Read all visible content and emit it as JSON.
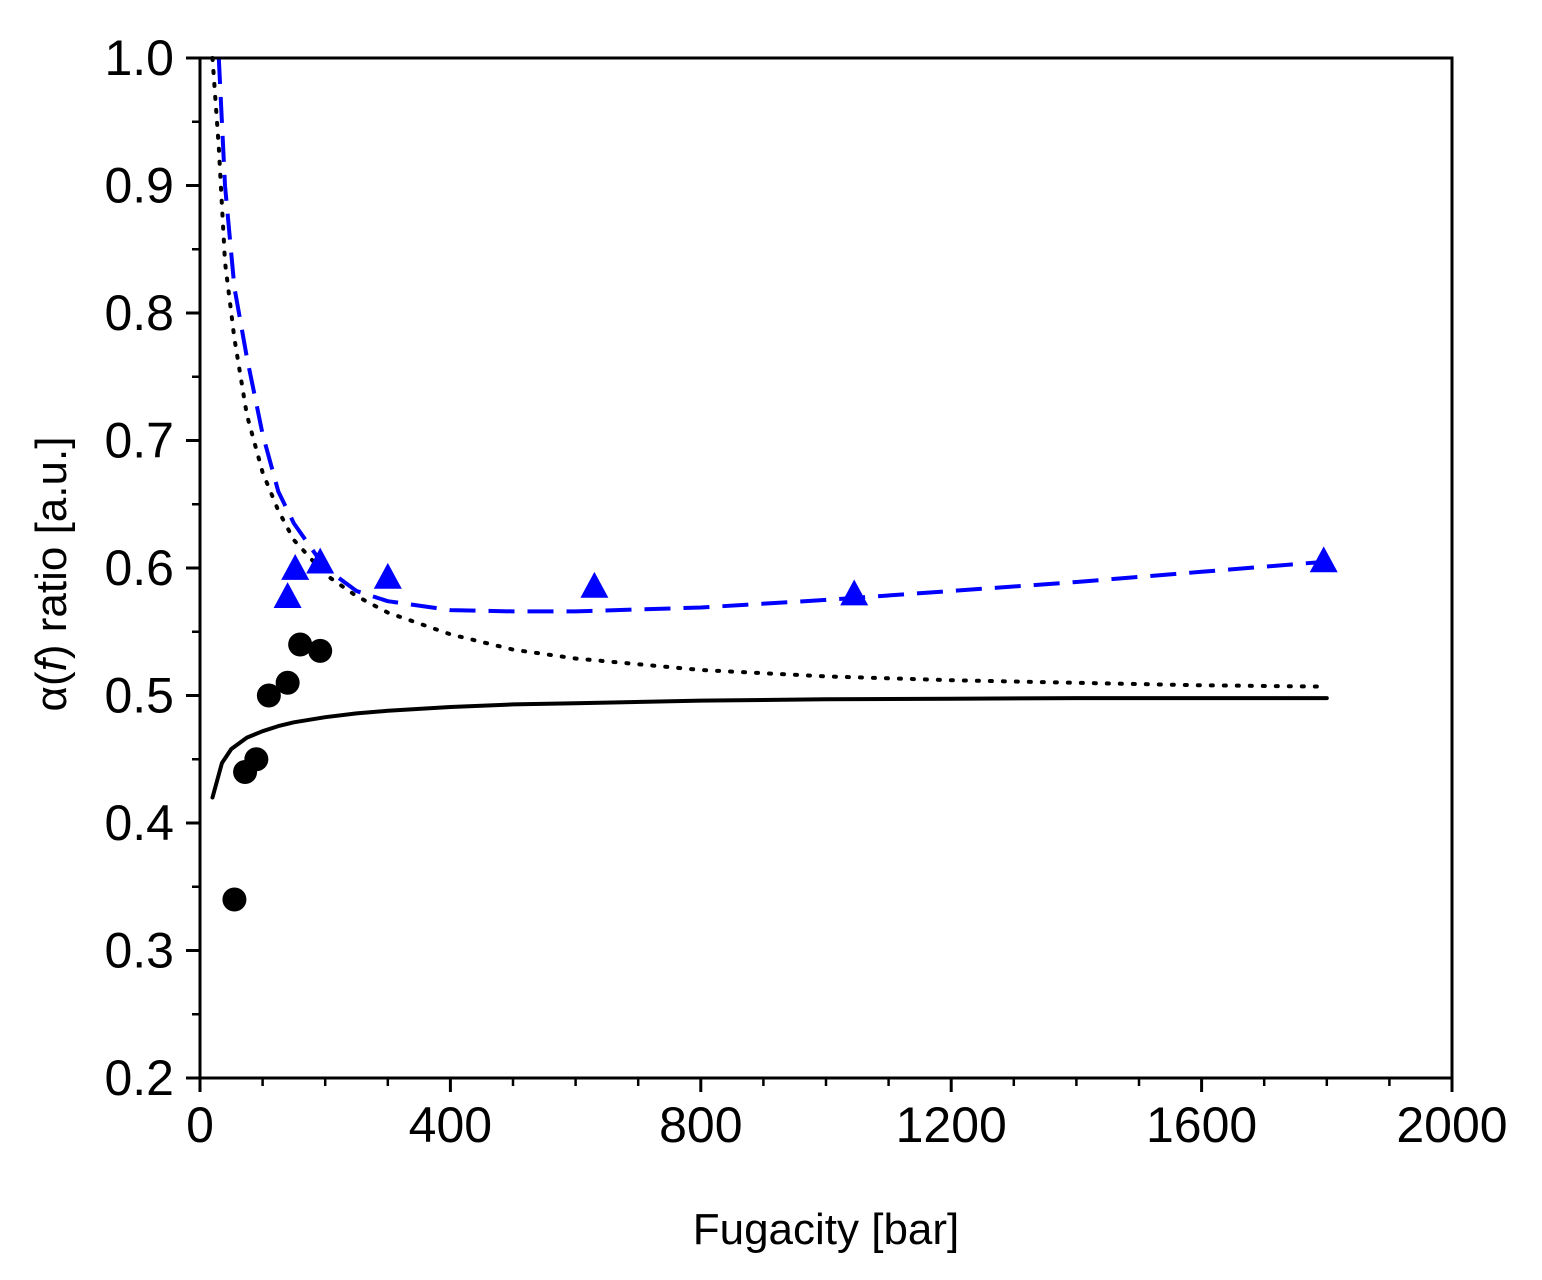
{
  "chart_data": {
    "type": "scatter",
    "title": "",
    "xlabel": "Fugacity [bar]",
    "ylabel_parts": [
      "α(",
      "f",
      ") ratio [a.u.]"
    ],
    "xlim": [
      0,
      2000
    ],
    "ylim": [
      0.2,
      1.0
    ],
    "x_ticks": [
      0,
      400,
      800,
      1200,
      1600,
      2000
    ],
    "x_tick_labels": [
      "0",
      "400",
      "800",
      "1200",
      "1600",
      "2000"
    ],
    "x_minor_step": 100,
    "y_ticks": [
      0.2,
      0.3,
      0.4,
      0.5,
      0.6,
      0.7,
      0.8,
      0.9,
      1.0
    ],
    "y_tick_labels": [
      "0.2",
      "0.3",
      "0.4",
      "0.5",
      "0.6",
      "0.7",
      "0.8",
      "0.9",
      "1.0"
    ],
    "y_minor_step": 0.05,
    "grid": false,
    "series": [
      {
        "name": "black-circles",
        "kind": "scatter",
        "marker": "circle",
        "color": "#000000",
        "points": [
          [
            55,
            0.34
          ],
          [
            72,
            0.44
          ],
          [
            90,
            0.45
          ],
          [
            110,
            0.5
          ],
          [
            140,
            0.51
          ],
          [
            160,
            0.54
          ],
          [
            192,
            0.535
          ]
        ]
      },
      {
        "name": "blue-triangles",
        "kind": "scatter",
        "marker": "triangle",
        "color": "#0000ff",
        "points": [
          [
            140,
            0.578
          ],
          [
            152,
            0.6
          ],
          [
            192,
            0.605
          ],
          [
            300,
            0.593
          ],
          [
            630,
            0.586
          ],
          [
            1045,
            0.58
          ],
          [
            1795,
            0.606
          ]
        ]
      },
      {
        "name": "solid-fit",
        "kind": "line",
        "dash": "solid",
        "color": "#000000",
        "points": [
          [
            20,
            0.42
          ],
          [
            35,
            0.447
          ],
          [
            50,
            0.458
          ],
          [
            75,
            0.467
          ],
          [
            100,
            0.472
          ],
          [
            125,
            0.476
          ],
          [
            150,
            0.479
          ],
          [
            200,
            0.483
          ],
          [
            250,
            0.486
          ],
          [
            300,
            0.488
          ],
          [
            400,
            0.491
          ],
          [
            500,
            0.493
          ],
          [
            600,
            0.494
          ],
          [
            800,
            0.496
          ],
          [
            1000,
            0.497
          ],
          [
            1200,
            0.4975
          ],
          [
            1400,
            0.498
          ],
          [
            1600,
            0.498
          ],
          [
            1800,
            0.498
          ]
        ]
      },
      {
        "name": "dotted-fit",
        "kind": "line",
        "dash": "dotted",
        "color": "#000000",
        "points": [
          [
            20,
            1.0
          ],
          [
            30,
            0.93
          ],
          [
            40,
            0.84
          ],
          [
            55,
            0.78
          ],
          [
            75,
            0.72
          ],
          [
            100,
            0.675
          ],
          [
            125,
            0.645
          ],
          [
            150,
            0.622
          ],
          [
            200,
            0.595
          ],
          [
            250,
            0.578
          ],
          [
            300,
            0.565
          ],
          [
            400,
            0.548
          ],
          [
            500,
            0.536
          ],
          [
            600,
            0.529
          ],
          [
            800,
            0.52
          ],
          [
            1000,
            0.515
          ],
          [
            1200,
            0.512
          ],
          [
            1400,
            0.51
          ],
          [
            1600,
            0.508
          ],
          [
            1800,
            0.507
          ]
        ]
      },
      {
        "name": "dashed-fit",
        "kind": "line",
        "dash": "dashed",
        "color": "#0000ff",
        "points": [
          [
            30,
            1.0
          ],
          [
            40,
            0.9
          ],
          [
            55,
            0.82
          ],
          [
            75,
            0.765
          ],
          [
            100,
            0.705
          ],
          [
            125,
            0.66
          ],
          [
            150,
            0.635
          ],
          [
            200,
            0.6
          ],
          [
            250,
            0.582
          ],
          [
            300,
            0.574
          ],
          [
            400,
            0.567
          ],
          [
            500,
            0.566
          ],
          [
            600,
            0.566
          ],
          [
            800,
            0.569
          ],
          [
            1000,
            0.575
          ],
          [
            1200,
            0.582
          ],
          [
            1400,
            0.589
          ],
          [
            1600,
            0.597
          ],
          [
            1800,
            0.605
          ]
        ]
      }
    ]
  }
}
